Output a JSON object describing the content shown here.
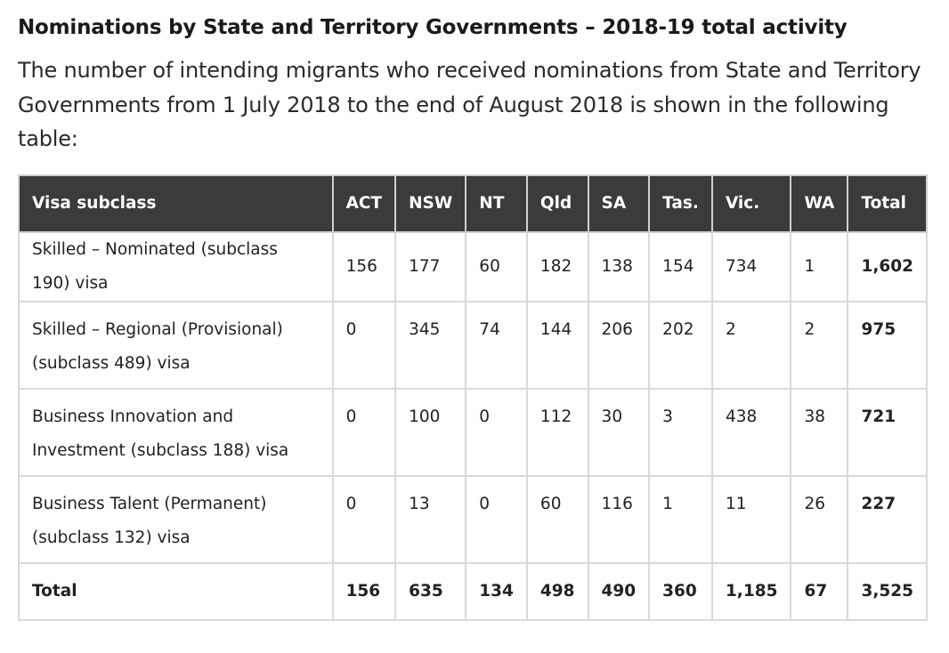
{
  "heading": "Nominations by State and Territory Governments – 2018-19 total activity",
  "intro": "The number of intending migrants who received nominations from State and Territory Governments from 1 July 2018 to the end of August 2018 is shown in the following table:",
  "table": {
    "headers": [
      "Visa subclass",
      "ACT",
      "NSW",
      "NT",
      "Qld",
      "SA",
      "Tas.",
      "Vic.",
      "WA",
      "Total"
    ],
    "rows": [
      {
        "label": "Skilled – Nominated (subclass 190) visa",
        "values": [
          "156",
          "177",
          "60",
          "182",
          "138",
          "154",
          "734",
          "1"
        ],
        "total": "1,602"
      },
      {
        "label": "Skilled – Regional (Provisional) (subclass 489) visa",
        "values": [
          "0",
          "345",
          "74",
          "144",
          "206",
          "202",
          "2",
          "2"
        ],
        "total": "975"
      },
      {
        "label": "Business Innovation and Investment (subclass 188) visa",
        "values": [
          "0",
          "100",
          "0",
          "112",
          "30",
          "3",
          "438",
          "38"
        ],
        "total": "721"
      },
      {
        "label": "Business Talent (Permanent) (subclass 132) visa",
        "values": [
          "0",
          "13",
          "0",
          "60",
          "116",
          "1",
          "11",
          "26"
        ],
        "total": "227"
      }
    ],
    "total_row": {
      "label": "Total",
      "values": [
        "156",
        "635",
        "134",
        "498",
        "490",
        "360",
        "1,185",
        "67"
      ],
      "total": "3,525"
    }
  }
}
